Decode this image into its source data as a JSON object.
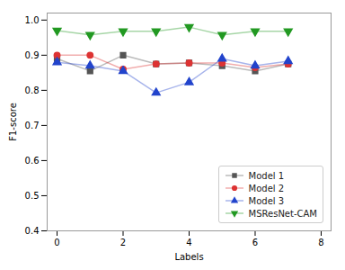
{
  "chart_data": {
    "type": "line",
    "x": [
      0,
      1,
      2,
      3,
      4,
      5,
      6,
      7
    ],
    "series": [
      {
        "name": "Model 1",
        "color": "#555555",
        "marker": "square",
        "values": [
          0.89,
          0.855,
          0.9,
          0.875,
          0.878,
          0.87,
          0.855,
          0.875
        ]
      },
      {
        "name": "Model 2",
        "color": "#dd3333",
        "marker": "circle",
        "values": [
          0.9,
          0.9,
          0.86,
          0.875,
          0.878,
          0.878,
          0.865,
          0.875
        ]
      },
      {
        "name": "Model 3",
        "color": "#2244cc",
        "marker": "triangle-up",
        "values": [
          0.88,
          0.87,
          0.855,
          0.793,
          0.823,
          0.89,
          0.87,
          0.883
        ]
      },
      {
        "name": "MSResNet-CAM",
        "color": "#229922",
        "marker": "triangle-down",
        "values": [
          0.97,
          0.958,
          0.968,
          0.968,
          0.98,
          0.958,
          0.968,
          0.968
        ]
      }
    ],
    "xlabel": "Labels",
    "ylabel": "F1-score",
    "xlim": [
      -0.3,
      8.3
    ],
    "xticks": [
      0,
      2,
      4,
      6,
      8
    ],
    "ylim": [
      0.4,
      1.02
    ],
    "yticks": [
      0.4,
      0.5,
      0.6,
      0.7,
      0.8,
      0.9,
      {
        "value": 1.0,
        "label": "1.0"
      }
    ],
    "legend": "lower right",
    "grid": false
  }
}
